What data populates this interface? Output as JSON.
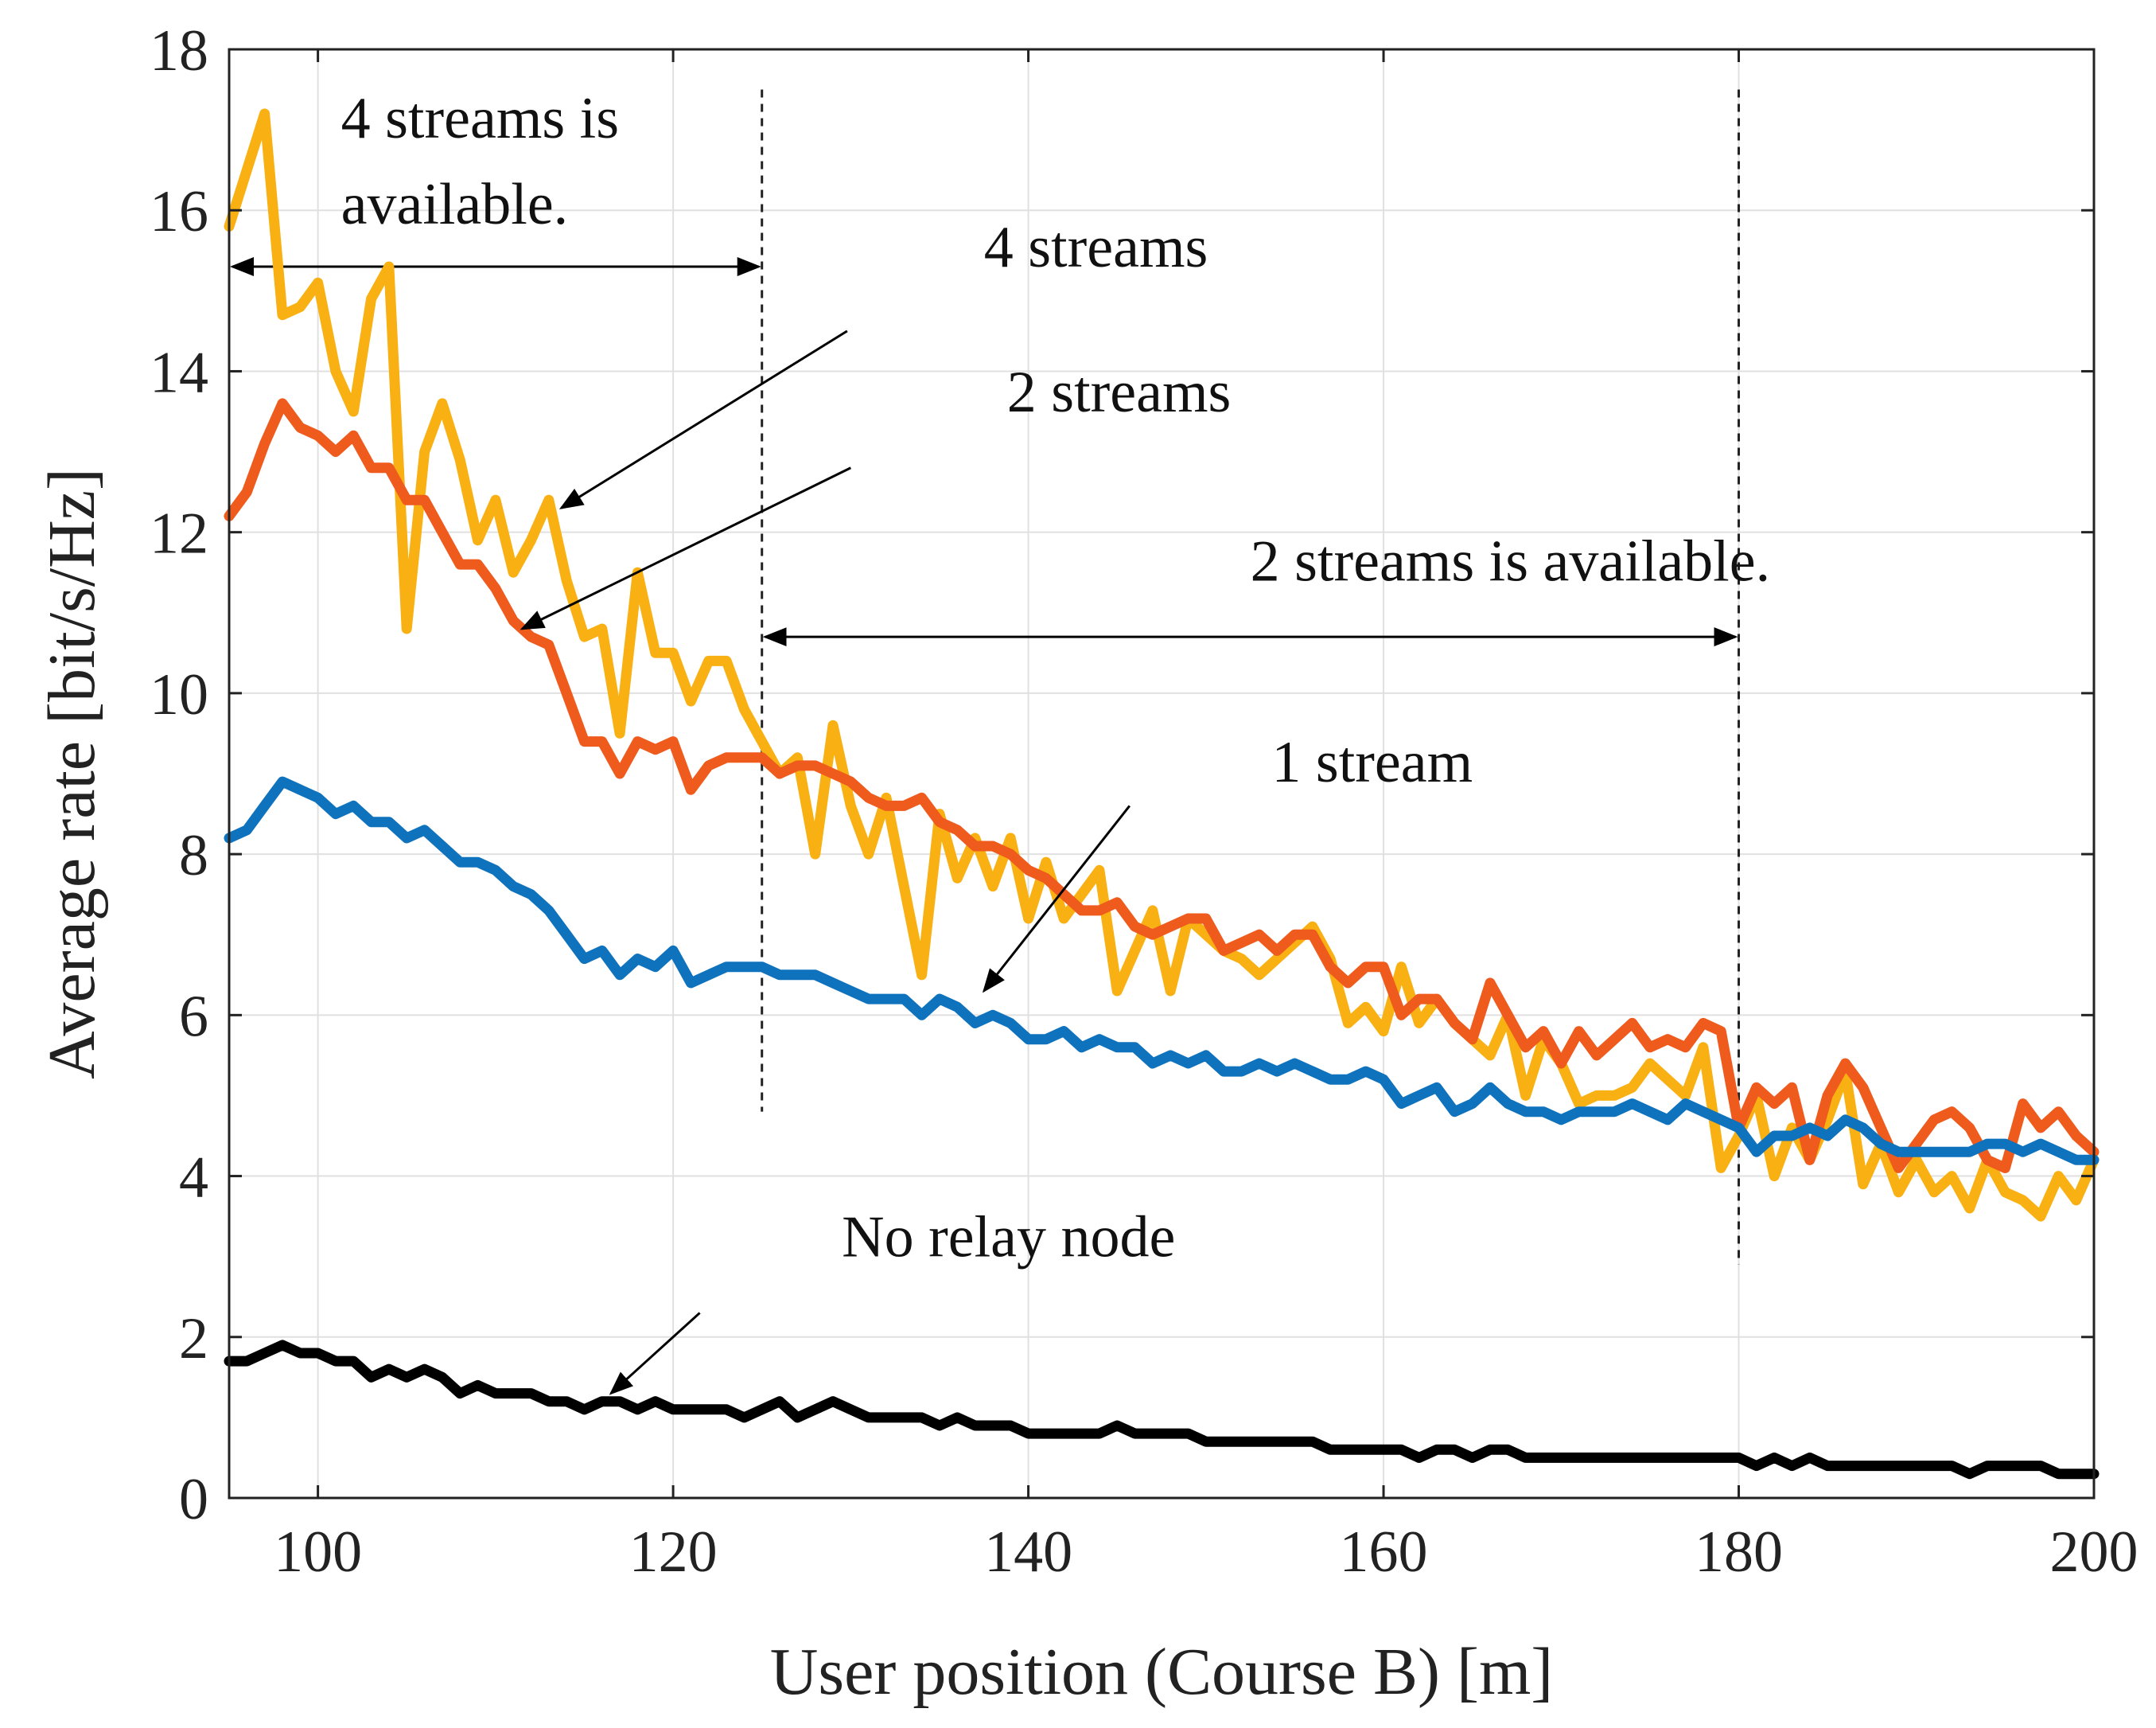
{
  "chart_data": {
    "type": "line",
    "title": "",
    "xlabel": "User position (Course B) [m]",
    "ylabel": "Average rate [bit/s/Hz]",
    "xlim": [
      95,
      200
    ],
    "ylim": [
      0,
      18
    ],
    "xticks": [
      100,
      120,
      140,
      160,
      180,
      200
    ],
    "yticks": [
      0,
      2,
      4,
      6,
      8,
      10,
      12,
      14,
      16,
      18
    ],
    "grid": true,
    "legend": "none",
    "series": [
      {
        "key": "four_streams",
        "color": "#F8B013",
        "x": [
          95,
          96,
          97,
          98,
          99,
          100,
          101,
          102,
          103,
          104,
          105,
          106,
          107,
          108,
          109,
          110,
          111,
          112,
          113,
          114,
          115,
          116,
          117,
          118,
          119,
          120,
          121,
          122,
          123,
          124,
          125,
          126,
          127,
          128,
          129,
          130,
          131,
          132,
          133,
          134,
          135,
          136,
          137,
          138,
          139,
          140,
          141,
          142,
          143,
          144,
          145,
          146,
          147,
          148,
          149,
          150,
          151,
          152,
          153,
          154,
          155,
          156,
          157,
          158,
          159,
          160,
          161,
          162,
          163,
          164,
          165,
          166,
          167,
          168,
          169,
          170,
          171,
          172,
          173,
          174,
          175,
          176,
          177,
          178,
          179,
          180,
          181,
          182,
          183,
          184,
          185,
          186,
          187,
          188,
          189,
          190,
          191,
          192,
          193,
          194,
          195,
          196,
          197,
          198,
          199,
          200
        ],
        "y": [
          15.8,
          16.5,
          17.2,
          14.7,
          14.8,
          15.1,
          14.0,
          13.5,
          14.9,
          15.3,
          10.8,
          13.0,
          13.6,
          12.9,
          11.9,
          12.4,
          11.5,
          11.9,
          12.4,
          11.4,
          10.7,
          10.8,
          9.5,
          11.5,
          10.5,
          10.5,
          9.9,
          10.4,
          10.4,
          9.8,
          9.4,
          9.0,
          9.2,
          8.0,
          9.6,
          8.6,
          8.0,
          8.7,
          7.6,
          6.5,
          8.5,
          7.7,
          8.2,
          7.6,
          8.2,
          7.2,
          7.9,
          7.2,
          7.5,
          7.8,
          6.3,
          6.8,
          7.3,
          6.3,
          7.2,
          7.0,
          6.8,
          6.7,
          6.5,
          6.7,
          6.9,
          7.1,
          6.7,
          5.9,
          6.1,
          5.8,
          6.6,
          5.9,
          6.2,
          5.9,
          5.7,
          5.5,
          6.0,
          5.0,
          5.7,
          5.4,
          4.9,
          5.0,
          5.0,
          5.1,
          5.4,
          5.2,
          5.0,
          5.6,
          4.1,
          4.5,
          5.0,
          4.0,
          4.6,
          4.2,
          4.7,
          5.3,
          3.9,
          4.4,
          3.8,
          4.2,
          3.8,
          4.0,
          3.6,
          4.2,
          3.8,
          3.7,
          3.5,
          4.0,
          3.7,
          4.2
        ],
        "label": "4 streams"
      },
      {
        "key": "two_streams",
        "color": "#EF5A1D",
        "x": [
          95,
          96,
          97,
          98,
          99,
          100,
          101,
          102,
          103,
          104,
          105,
          106,
          107,
          108,
          109,
          110,
          111,
          112,
          113,
          114,
          115,
          116,
          117,
          118,
          119,
          120,
          121,
          122,
          123,
          124,
          125,
          126,
          127,
          128,
          129,
          130,
          131,
          132,
          133,
          134,
          135,
          136,
          137,
          138,
          139,
          140,
          141,
          142,
          143,
          144,
          145,
          146,
          147,
          148,
          149,
          150,
          151,
          152,
          153,
          154,
          155,
          156,
          157,
          158,
          159,
          160,
          161,
          162,
          163,
          164,
          165,
          166,
          167,
          168,
          169,
          170,
          171,
          172,
          173,
          174,
          175,
          176,
          177,
          178,
          179,
          180,
          181,
          182,
          183,
          184,
          185,
          186,
          187,
          188,
          189,
          190,
          191,
          192,
          193,
          194,
          195,
          196,
          197,
          198,
          199,
          200
        ],
        "y": [
          12.2,
          12.5,
          13.1,
          13.6,
          13.3,
          13.2,
          13.0,
          13.2,
          12.8,
          12.8,
          12.4,
          12.4,
          12.0,
          11.6,
          11.6,
          11.3,
          10.9,
          10.7,
          10.6,
          10.0,
          9.4,
          9.4,
          9.0,
          9.4,
          9.3,
          9.4,
          8.8,
          9.1,
          9.2,
          9.2,
          9.2,
          9.0,
          9.1,
          9.1,
          9.0,
          8.9,
          8.7,
          8.6,
          8.6,
          8.7,
          8.4,
          8.3,
          8.1,
          8.1,
          8.0,
          7.8,
          7.7,
          7.5,
          7.3,
          7.3,
          7.4,
          7.1,
          7.0,
          7.1,
          7.2,
          7.2,
          6.8,
          6.9,
          7.0,
          6.8,
          7.0,
          7.0,
          6.6,
          6.4,
          6.6,
          6.6,
          6.0,
          6.2,
          6.2,
          5.9,
          5.7,
          6.4,
          6.0,
          5.6,
          5.8,
          5.4,
          5.8,
          5.5,
          5.7,
          5.9,
          5.6,
          5.7,
          5.6,
          5.9,
          5.8,
          4.6,
          5.1,
          4.9,
          5.1,
          4.2,
          5.0,
          5.4,
          5.1,
          4.6,
          4.1,
          4.4,
          4.7,
          4.8,
          4.6,
          4.2,
          4.1,
          4.9,
          4.6,
          4.8,
          4.5,
          4.3
        ],
        "label": "2 streams"
      },
      {
        "key": "one_stream",
        "color": "#0F72BD",
        "x": [
          95,
          96,
          97,
          98,
          99,
          100,
          101,
          102,
          103,
          104,
          105,
          106,
          107,
          108,
          109,
          110,
          111,
          112,
          113,
          114,
          115,
          116,
          117,
          118,
          119,
          120,
          121,
          122,
          123,
          124,
          125,
          126,
          127,
          128,
          129,
          130,
          131,
          132,
          133,
          134,
          135,
          136,
          137,
          138,
          139,
          140,
          141,
          142,
          143,
          144,
          145,
          146,
          147,
          148,
          149,
          150,
          151,
          152,
          153,
          154,
          155,
          156,
          157,
          158,
          159,
          160,
          161,
          162,
          163,
          164,
          165,
          166,
          167,
          168,
          169,
          170,
          171,
          172,
          173,
          174,
          175,
          176,
          177,
          178,
          179,
          180,
          181,
          182,
          183,
          184,
          185,
          186,
          187,
          188,
          189,
          190,
          191,
          192,
          193,
          194,
          195,
          196,
          197,
          198,
          199,
          200
        ],
        "y": [
          8.2,
          8.3,
          8.6,
          8.9,
          8.8,
          8.7,
          8.5,
          8.6,
          8.4,
          8.4,
          8.2,
          8.3,
          8.1,
          7.9,
          7.9,
          7.8,
          7.6,
          7.5,
          7.3,
          7.0,
          6.7,
          6.8,
          6.5,
          6.7,
          6.6,
          6.8,
          6.4,
          6.5,
          6.6,
          6.6,
          6.6,
          6.5,
          6.5,
          6.5,
          6.4,
          6.3,
          6.2,
          6.2,
          6.2,
          6.0,
          6.2,
          6.1,
          5.9,
          6.0,
          5.9,
          5.7,
          5.7,
          5.8,
          5.6,
          5.7,
          5.6,
          5.6,
          5.4,
          5.5,
          5.4,
          5.5,
          5.3,
          5.3,
          5.4,
          5.3,
          5.4,
          5.3,
          5.2,
          5.2,
          5.3,
          5.2,
          4.9,
          5.0,
          5.1,
          4.8,
          4.9,
          5.1,
          4.9,
          4.8,
          4.8,
          4.7,
          4.8,
          4.8,
          4.8,
          4.9,
          4.8,
          4.7,
          4.9,
          4.8,
          4.7,
          4.6,
          4.3,
          4.5,
          4.5,
          4.6,
          4.5,
          4.7,
          4.6,
          4.4,
          4.3,
          4.3,
          4.3,
          4.3,
          4.3,
          4.4,
          4.4,
          4.3,
          4.4,
          4.3,
          4.2,
          4.2
        ],
        "label": "1 stream"
      },
      {
        "key": "no_relay",
        "color": "#000000",
        "x": [
          95,
          96,
          97,
          98,
          99,
          100,
          101,
          102,
          103,
          104,
          105,
          106,
          107,
          108,
          109,
          110,
          111,
          112,
          113,
          114,
          115,
          116,
          117,
          118,
          119,
          120,
          121,
          122,
          123,
          124,
          125,
          126,
          127,
          128,
          129,
          130,
          131,
          132,
          133,
          134,
          135,
          136,
          137,
          138,
          139,
          140,
          141,
          142,
          143,
          144,
          145,
          146,
          147,
          148,
          149,
          150,
          151,
          152,
          153,
          154,
          155,
          156,
          157,
          158,
          159,
          160,
          161,
          162,
          163,
          164,
          165,
          166,
          167,
          168,
          169,
          170,
          171,
          172,
          173,
          174,
          175,
          176,
          177,
          178,
          179,
          180,
          181,
          182,
          183,
          184,
          185,
          186,
          187,
          188,
          189,
          190,
          191,
          192,
          193,
          194,
          195,
          196,
          197,
          198,
          199,
          200
        ],
        "y": [
          1.7,
          1.7,
          1.8,
          1.9,
          1.8,
          1.8,
          1.7,
          1.7,
          1.5,
          1.6,
          1.5,
          1.6,
          1.5,
          1.3,
          1.4,
          1.3,
          1.3,
          1.3,
          1.2,
          1.2,
          1.1,
          1.2,
          1.2,
          1.1,
          1.2,
          1.1,
          1.1,
          1.1,
          1.1,
          1.0,
          1.1,
          1.2,
          1.0,
          1.1,
          1.2,
          1.1,
          1.0,
          1.0,
          1.0,
          1.0,
          0.9,
          1.0,
          0.9,
          0.9,
          0.9,
          0.8,
          0.8,
          0.8,
          0.8,
          0.8,
          0.9,
          0.8,
          0.8,
          0.8,
          0.8,
          0.7,
          0.7,
          0.7,
          0.7,
          0.7,
          0.7,
          0.7,
          0.6,
          0.6,
          0.6,
          0.6,
          0.6,
          0.5,
          0.6,
          0.6,
          0.5,
          0.6,
          0.6,
          0.5,
          0.5,
          0.5,
          0.5,
          0.5,
          0.5,
          0.5,
          0.5,
          0.5,
          0.5,
          0.5,
          0.5,
          0.5,
          0.4,
          0.5,
          0.4,
          0.5,
          0.4,
          0.4,
          0.4,
          0.4,
          0.4,
          0.4,
          0.4,
          0.4,
          0.3,
          0.4,
          0.4,
          0.4,
          0.4,
          0.3,
          0.3,
          0.3
        ],
        "label": "No relay node"
      }
    ],
    "annotations": [
      {
        "key": "four_label",
        "text": "4 streams",
        "text_x": 137.5,
        "text_y": 15.3,
        "arrow_from": [
          129.8,
          14.5
        ],
        "arrow_to": [
          113.7,
          12.3
        ]
      },
      {
        "key": "two_label",
        "text": "2 streams",
        "text_x": 138.8,
        "text_y": 13.5,
        "arrow_from": [
          130.0,
          12.8
        ],
        "arrow_to": [
          111.5,
          10.8
        ]
      },
      {
        "key": "one_label",
        "text": "1 stream",
        "text_x": 153.7,
        "text_y": 8.9,
        "arrow_from": [
          145.7,
          8.6
        ],
        "arrow_to": [
          137.5,
          6.3
        ]
      },
      {
        "key": "norelay_label",
        "text": "No relay node",
        "text_x": 129.5,
        "text_y": 3.0,
        "arrow_from": [
          121.5,
          2.3
        ],
        "arrow_to": [
          116.5,
          1.3
        ]
      },
      {
        "key": "region4_label",
        "text_lines": [
          "4 streams is",
          "available."
        ],
        "text_x": 101.3,
        "text_y": 16.9
      },
      {
        "key": "region2_label",
        "text": "2 streams is available.",
        "text_x": 152.5,
        "text_y": 11.4
      }
    ],
    "range_markers": [
      {
        "key": "four_range",
        "from": 95,
        "to": 125,
        "y": 15.3,
        "vline_x": 125,
        "vline_range": [
          4.8,
          17.5
        ]
      },
      {
        "key": "two_range",
        "from": 125,
        "to": 180,
        "y": 10.7,
        "vline_x": 180,
        "vline_range": [
          2.9,
          17.5
        ]
      }
    ]
  }
}
